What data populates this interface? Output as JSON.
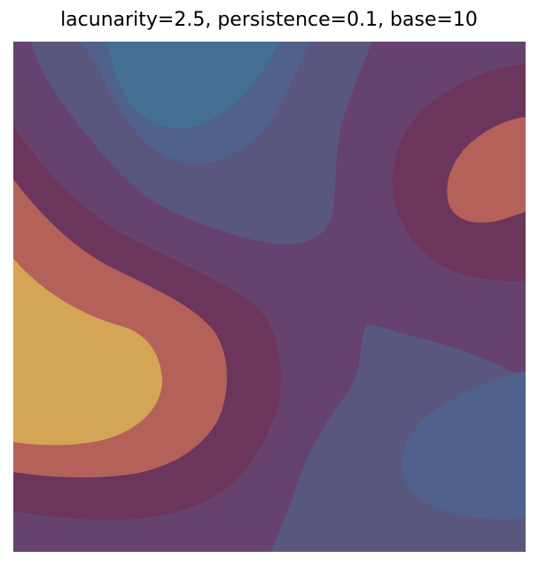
{
  "figure": {
    "title": "lacunarity=2.5, persistence=0.1, base=10"
  },
  "palette": {
    "level_1": "#5a577e",
    "level_2": "#4f618c",
    "level_3": "#437094",
    "level_4": "#66426f",
    "level_5": "#6c355c",
    "level_6": "#b4615a",
    "level_7": "#d4a556"
  }
}
